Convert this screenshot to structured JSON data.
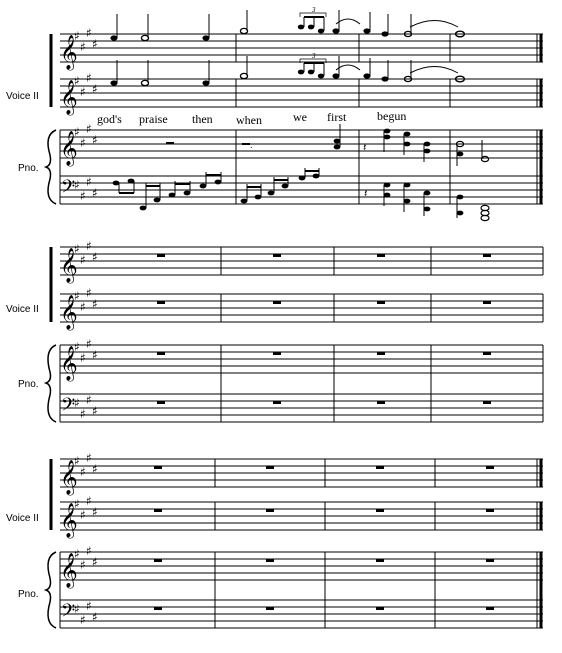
{
  "systems": [
    {
      "name": "system-1",
      "staff_labels": {
        "voice": "Voice II",
        "piano": "Pno."
      },
      "lyrics": [
        "god's",
        "praise",
        "then",
        "when",
        "we",
        "first",
        "begun"
      ],
      "triplet_label": "3",
      "measures": 4,
      "final_barline": true
    },
    {
      "name": "system-2",
      "staff_labels": {
        "voice": "Voice II",
        "piano": "Pno."
      },
      "measures": 4,
      "final_barline": false
    },
    {
      "name": "system-3",
      "staff_labels": {
        "voice": "Voice II",
        "piano": "Pno."
      },
      "measures": 5,
      "final_barline": true
    }
  ],
  "key_signature": "E major (4 sharps)",
  "clefs": {
    "treble": "𝄞",
    "bass": "𝄢"
  },
  "glyphs": {
    "sharp": "♯",
    "rest": "▬"
  }
}
